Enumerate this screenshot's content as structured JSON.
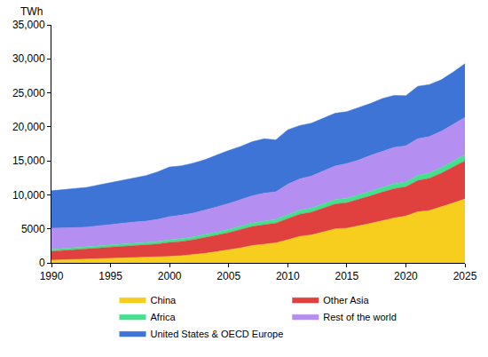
{
  "chart_data": {
    "type": "area",
    "stacked": true,
    "y_label": "TWh",
    "grid": false,
    "legend": "bottom",
    "x": [
      1990,
      1991,
      1992,
      1993,
      1994,
      1995,
      1996,
      1997,
      1998,
      1999,
      2000,
      2001,
      2002,
      2003,
      2004,
      2005,
      2006,
      2007,
      2008,
      2009,
      2010,
      2011,
      2012,
      2013,
      2014,
      2015,
      2016,
      2017,
      2018,
      2019,
      2020,
      2021,
      2022,
      2023,
      2024,
      2025
    ],
    "xlim": [
      1990,
      2025
    ],
    "xticks": [
      1990,
      1995,
      2000,
      2005,
      2010,
      2015,
      2020,
      2025
    ],
    "ylim": [
      0,
      35000
    ],
    "yticks": [
      0,
      5000,
      {
        "value": 10000,
        "label": "10,000"
      },
      {
        "value": 15000,
        "label": "15,000"
      },
      {
        "value": 20000,
        "label": "20,000"
      },
      {
        "value": 25000,
        "label": "25,000"
      },
      {
        "value": 30000,
        "label": "30,000"
      },
      {
        "value": 35000,
        "label": "35,000"
      }
    ],
    "series": [
      {
        "name": "China",
        "color": "#f7cd1e",
        "values": [
          400,
          450,
          500,
          560,
          620,
          680,
          720,
          750,
          780,
          850,
          950,
          1050,
          1200,
          1400,
          1650,
          1900,
          2200,
          2550,
          2750,
          2950,
          3400,
          3900,
          4100,
          4600,
          5000,
          5100,
          5400,
          5800,
          6200,
          6600,
          6900,
          7500,
          7700,
          8200,
          8800,
          9400
        ]
      },
      {
        "name": "Other Asia",
        "color": "#e0413f",
        "values": [
          1300,
          1350,
          1420,
          1480,
          1560,
          1640,
          1720,
          1800,
          1830,
          1920,
          2050,
          2100,
          2200,
          2300,
          2420,
          2550,
          2650,
          2800,
          2850,
          2900,
          3100,
          3250,
          3350,
          3500,
          3650,
          3750,
          3900,
          4050,
          4200,
          4300,
          4300,
          4600,
          4750,
          5000,
          5300,
          5600
        ]
      },
      {
        "name": "Africa",
        "color": "#45e08e",
        "values": [
          300,
          310,
          315,
          320,
          330,
          340,
          350,
          360,
          370,
          380,
          400,
          410,
          420,
          440,
          460,
          480,
          500,
          520,
          540,
          550,
          570,
          590,
          600,
          620,
          640,
          650,
          670,
          690,
          710,
          730,
          720,
          760,
          780,
          820,
          860,
          900
        ]
      },
      {
        "name": "Rest of the world",
        "color": "#b48ef0",
        "values": [
          3100,
          3000,
          2950,
          2900,
          2950,
          3000,
          3050,
          3100,
          3150,
          3250,
          3400,
          3450,
          3500,
          3600,
          3700,
          3800,
          3900,
          4000,
          4100,
          4050,
          4500,
          4600,
          4700,
          4800,
          4950,
          5100,
          5150,
          5250,
          5300,
          5350,
          5300,
          5400,
          5350,
          5350,
          5400,
          5500
        ]
      },
      {
        "name": "United States & OECD Europe",
        "color": "#3d74d6",
        "values": [
          5500,
          5650,
          5750,
          5850,
          6000,
          6150,
          6350,
          6500,
          6700,
          7000,
          7300,
          7250,
          7350,
          7450,
          7650,
          7800,
          7850,
          7950,
          8000,
          7650,
          8000,
          7850,
          7800,
          7800,
          7750,
          7650,
          7700,
          7650,
          7750,
          7650,
          7350,
          7700,
          7650,
          7550,
          7700,
          7900
        ]
      }
    ]
  }
}
